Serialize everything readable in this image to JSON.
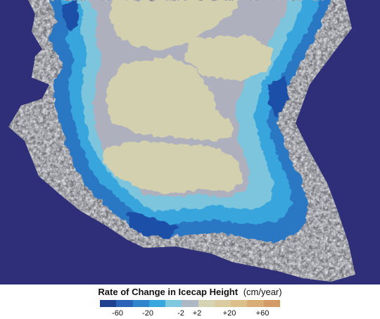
{
  "legend": {
    "title": "Rate of Change in Icecap Height",
    "unit": "(cm/year)",
    "ticks": [
      "-60",
      "-20",
      "-2",
      "+2",
      "+20",
      "+60"
    ],
    "colors": [
      "#1f3f8f",
      "#2c63b8",
      "#2f86cc",
      "#37a7de",
      "#7fc8e0",
      "#aeb7c4",
      "#d6d3b4",
      "#d9cb9f",
      "#dcc08c",
      "#d8ad78",
      "#d39c66"
    ]
  },
  "map": {
    "ocean_color": "#2e2f78",
    "ice_interior_color": "#d3d0b0",
    "ice_gray_color": "#aeb0bd",
    "thinning_light_color": "#7cc5dd",
    "thinning_mid_color": "#38a6dc",
    "thinning_strong_color": "#2a78c4",
    "coast_rock_color": "#8d8e94"
  }
}
